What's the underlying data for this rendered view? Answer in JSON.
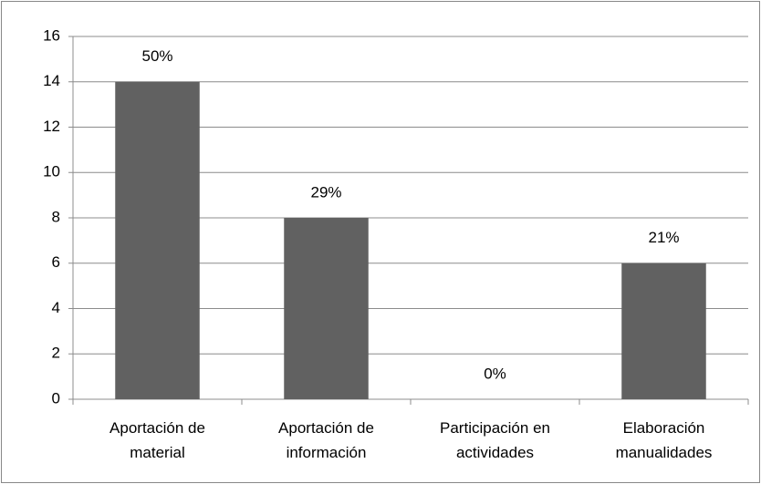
{
  "chart_data": {
    "type": "bar",
    "categories": [
      [
        "Aportación de",
        "material"
      ],
      [
        "Aportación de",
        "información"
      ],
      [
        "Participación en",
        "actividades"
      ],
      [
        "Elaboración",
        "manualidades"
      ]
    ],
    "values": [
      14,
      8,
      0,
      6
    ],
    "percent_labels": [
      "50%",
      "29%",
      "0%",
      "21%"
    ],
    "color": "#616161",
    "ylim": [
      0,
      16
    ],
    "yticks": [
      0,
      2,
      4,
      6,
      8,
      10,
      12,
      14,
      16
    ],
    "grid": true
  }
}
